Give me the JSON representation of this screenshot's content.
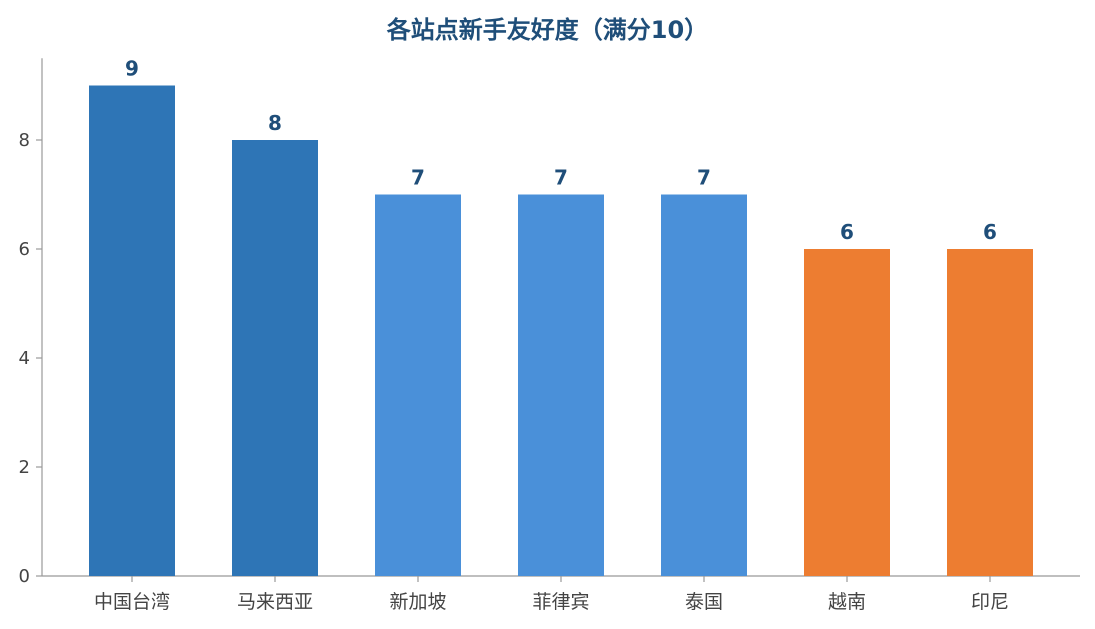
{
  "chart_data": {
    "type": "bar",
    "title": "各站点新手友好度（满分10）",
    "xlabel": "",
    "ylabel": "",
    "categories": [
      "中国台湾",
      "马来西亚",
      "新加坡",
      "菲律宾",
      "泰国",
      "越南",
      "印尼"
    ],
    "values": [
      9,
      8,
      7,
      7,
      7,
      6,
      6
    ],
    "bar_colors": [
      "#2e75b6",
      "#2e75b6",
      "#4a90d9",
      "#4a90d9",
      "#4a90d9",
      "#ed7d31",
      "#ed7d31"
    ],
    "ylim": [
      0,
      9.5
    ],
    "yticks": [
      0,
      2,
      4,
      6,
      8
    ],
    "grid": false,
    "legend": "none",
    "data_labels": true
  }
}
